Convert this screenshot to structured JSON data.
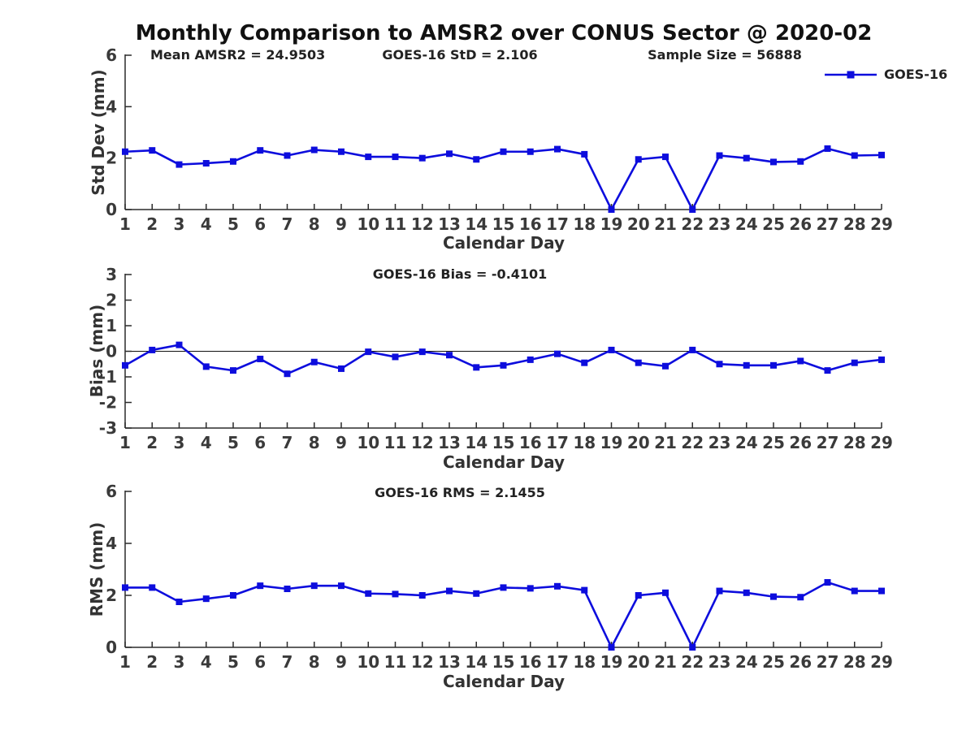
{
  "figure": {
    "title": "Monthly Comparison to AMSR2 over CONUS Sector @ 2020-02"
  },
  "legend": {
    "label": "GOES-16",
    "series_color": "#0d0ddd"
  },
  "chart_data": [
    {
      "id": "std_dev",
      "type": "line",
      "title": "",
      "xlabel": "Calendar Day",
      "ylabel": "Std Dev (mm)",
      "annotations": {
        "left": "Mean AMSR2 = 24.9503",
        "center": "GOES-16 StD = 2.106",
        "right": "Sample Size = 56888"
      },
      "ylim": [
        0,
        6
      ],
      "yticks": [
        0,
        2,
        4,
        6
      ],
      "grid": false,
      "legend_position": "upper-right-outside",
      "x": [
        1,
        2,
        3,
        4,
        5,
        6,
        7,
        8,
        9,
        10,
        11,
        12,
        13,
        14,
        15,
        16,
        17,
        18,
        19,
        20,
        21,
        22,
        23,
        24,
        25,
        26,
        27,
        28,
        29
      ],
      "series": [
        {
          "name": "GOES-16",
          "color": "#0d0ddd",
          "marker": "square",
          "values": [
            2.25,
            2.3,
            1.75,
            1.8,
            1.87,
            2.3,
            2.1,
            2.32,
            2.25,
            2.05,
            2.05,
            2.0,
            2.17,
            1.95,
            2.25,
            2.25,
            2.35,
            2.15,
            0.0,
            1.95,
            2.05,
            0.0,
            2.1,
            2.0,
            1.85,
            1.87,
            2.37,
            2.1,
            2.12
          ]
        }
      ]
    },
    {
      "id": "bias",
      "type": "line",
      "title": "GOES-16 Bias = -0.4101",
      "xlabel": "Calendar Day",
      "ylabel": "Bias (mm)",
      "ylim": [
        -3,
        3
      ],
      "yticks": [
        -3,
        -2,
        -1,
        0,
        1,
        2,
        3
      ],
      "zero_line": true,
      "grid": false,
      "x": [
        1,
        2,
        3,
        4,
        5,
        6,
        7,
        8,
        9,
        10,
        11,
        12,
        13,
        14,
        15,
        16,
        17,
        18,
        19,
        20,
        21,
        22,
        23,
        24,
        25,
        26,
        27,
        28,
        29
      ],
      "series": [
        {
          "name": "GOES-16",
          "color": "#0d0ddd",
          "marker": "square",
          "values": [
            -0.55,
            0.05,
            0.25,
            -0.6,
            -0.75,
            -0.3,
            -0.88,
            -0.42,
            -0.68,
            -0.02,
            -0.22,
            -0.02,
            -0.15,
            -0.63,
            -0.55,
            -0.33,
            -0.1,
            -0.45,
            0.05,
            -0.45,
            -0.58,
            0.05,
            -0.5,
            -0.55,
            -0.55,
            -0.38,
            -0.75,
            -0.45,
            -0.33
          ]
        }
      ]
    },
    {
      "id": "rms",
      "type": "line",
      "title": "GOES-16 RMS = 2.1455",
      "xlabel": "Calendar Day",
      "ylabel": "RMS (mm)",
      "ylim": [
        0,
        6
      ],
      "yticks": [
        0,
        2,
        4,
        6
      ],
      "grid": false,
      "x": [
        1,
        2,
        3,
        4,
        5,
        6,
        7,
        8,
        9,
        10,
        11,
        12,
        13,
        14,
        15,
        16,
        17,
        18,
        19,
        20,
        21,
        22,
        23,
        24,
        25,
        26,
        27,
        28,
        29
      ],
      "series": [
        {
          "name": "GOES-16",
          "color": "#0d0ddd",
          "marker": "square",
          "values": [
            2.3,
            2.3,
            1.75,
            1.87,
            2.0,
            2.37,
            2.25,
            2.37,
            2.37,
            2.07,
            2.05,
            2.0,
            2.17,
            2.07,
            2.3,
            2.27,
            2.35,
            2.2,
            0.0,
            2.0,
            2.1,
            0.0,
            2.17,
            2.1,
            1.95,
            1.93,
            2.5,
            2.17,
            2.17
          ]
        }
      ]
    }
  ]
}
